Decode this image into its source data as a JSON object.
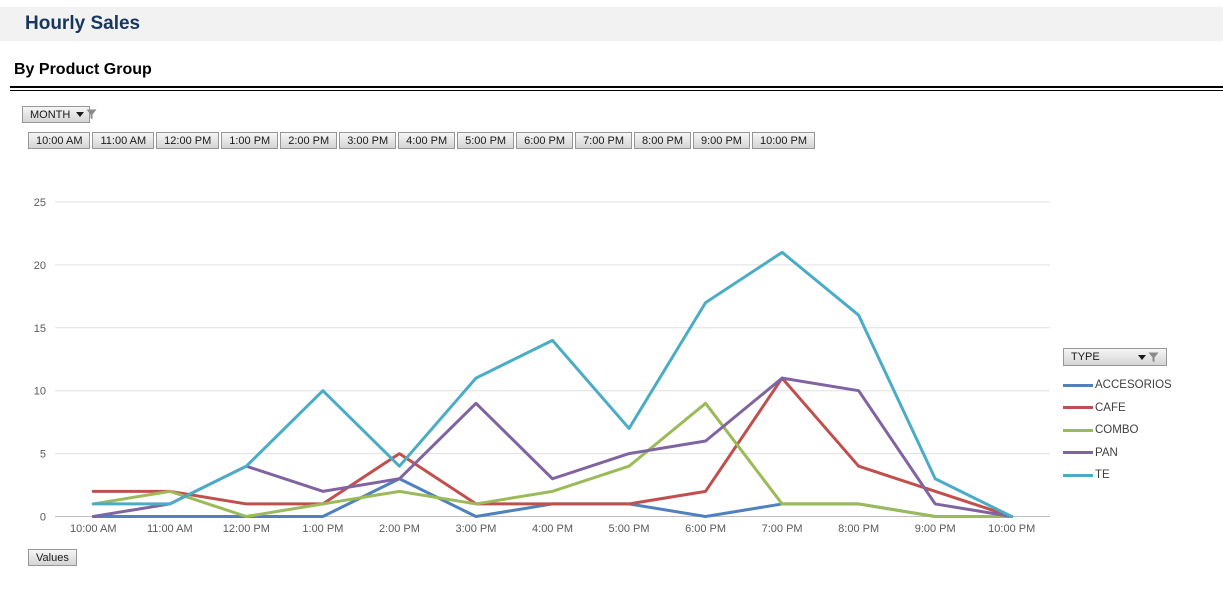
{
  "page": {
    "title": "Hourly Sales",
    "subtitle": "By Product Group"
  },
  "filters": {
    "month_button_label": "MONTH",
    "type_button_label": "TYPE",
    "values_button_label": "Values",
    "time_buttons": [
      "10:00 AM",
      "11:00 AM",
      "12:00 PM",
      "1:00 PM",
      "2:00 PM",
      "3:00 PM",
      "4:00 PM",
      "5:00 PM",
      "6:00 PM",
      "7:00 PM",
      "8:00 PM",
      "9:00 PM",
      "10:00 PM"
    ]
  },
  "colors": {
    "title_text": "#17375e",
    "header_bar_bg": "#f2f2f2",
    "axis_text": "#595959",
    "gridline": "#e0e0e0",
    "axis_line": "#bfbfbf"
  },
  "chart_data": {
    "type": "line",
    "title": "Hourly Sales By Product Group",
    "legend_title": "TYPE",
    "legend_position": "right",
    "grid": true,
    "xlabel": "",
    "ylabel": "",
    "ylim": [
      0,
      25
    ],
    "yticks": [
      0,
      5,
      10,
      15,
      20,
      25
    ],
    "categories": [
      "10:00 AM",
      "11:00 AM",
      "12:00 PM",
      "1:00 PM",
      "2:00 PM",
      "3:00 PM",
      "4:00 PM",
      "5:00 PM",
      "6:00 PM",
      "7:00 PM",
      "8:00 PM",
      "9:00 PM",
      "10:00 PM"
    ],
    "series": [
      {
        "name": "ACCESORIOS",
        "color": "#4F81BD",
        "values": [
          0,
          0,
          0,
          0,
          3,
          0,
          1,
          1,
          0,
          1,
          1,
          0,
          0
        ]
      },
      {
        "name": "CAFE",
        "color": "#C0504D",
        "values": [
          2,
          2,
          1,
          1,
          5,
          1,
          1,
          1,
          2,
          11,
          4,
          2,
          0
        ]
      },
      {
        "name": "COMBO",
        "color": "#9BBB59",
        "values": [
          1,
          2,
          0,
          1,
          2,
          1,
          2,
          4,
          9,
          1,
          1,
          0,
          0
        ]
      },
      {
        "name": "PAN",
        "color": "#8064A2",
        "values": [
          0,
          1,
          4,
          2,
          3,
          9,
          3,
          5,
          6,
          11,
          10,
          1,
          0
        ]
      },
      {
        "name": "TE",
        "color": "#4BACC6",
        "values": [
          1,
          1,
          4,
          10,
          4,
          11,
          14,
          7,
          17,
          21,
          16,
          3,
          0
        ]
      }
    ]
  }
}
